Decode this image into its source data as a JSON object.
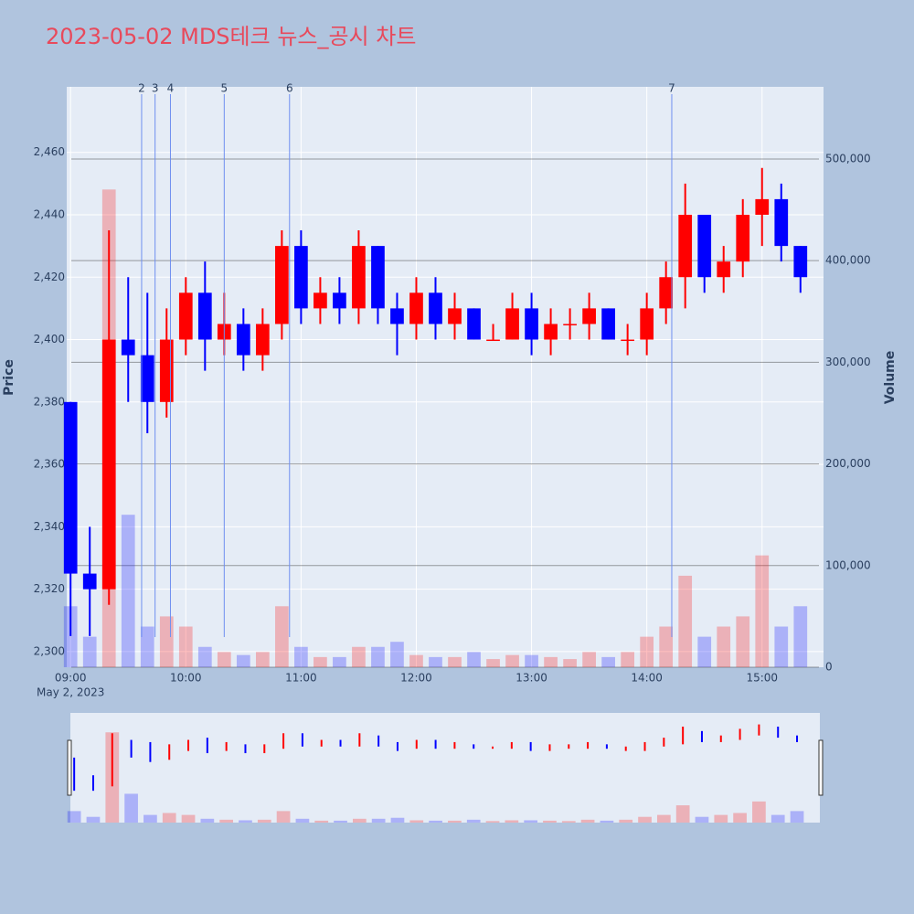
{
  "chart_data": {
    "type": "candlestick",
    "title": "2023-05-02 MDS테크 뉴스_공시 차트",
    "date_label": "May 2, 2023",
    "y_title": "Price",
    "y2_title": "Volume",
    "up_color": "#ff0000",
    "down_color": "#0000ff",
    "x": [
      "2023-05-02 09:00",
      "2023-05-02 09:10",
      "2023-05-02 09:20",
      "2023-05-02 09:30",
      "2023-05-02 09:40",
      "2023-05-02 09:50",
      "2023-05-02 10:00",
      "2023-05-02 10:10",
      "2023-05-02 10:20",
      "2023-05-02 10:30",
      "2023-05-02 10:40",
      "2023-05-02 10:50",
      "2023-05-02 11:00",
      "2023-05-02 11:10",
      "2023-05-02 11:20",
      "2023-05-02 11:30",
      "2023-05-02 11:40",
      "2023-05-02 11:50",
      "2023-05-02 12:00",
      "2023-05-02 12:10",
      "2023-05-02 12:20",
      "2023-05-02 12:30",
      "2023-05-02 12:40",
      "2023-05-02 12:50",
      "2023-05-02 13:00",
      "2023-05-02 13:10",
      "2023-05-02 13:20",
      "2023-05-02 13:30",
      "2023-05-02 13:40",
      "2023-05-02 13:50",
      "2023-05-02 14:00",
      "2023-05-02 14:10",
      "2023-05-02 14:20",
      "2023-05-02 14:30",
      "2023-05-02 14:40",
      "2023-05-02 14:50",
      "2023-05-02 15:00",
      "2023-05-02 15:10",
      "2023-05-02 15:20"
    ],
    "open": [
      2380,
      2325,
      2320,
      2400,
      2395,
      2380,
      2400,
      2415,
      2400,
      2405,
      2395,
      2405,
      2430,
      2410,
      2415,
      2410,
      2430,
      2410,
      2405,
      2415,
      2405,
      2410,
      2400,
      2400,
      2410,
      2400,
      2405,
      2405,
      2410,
      2400,
      2400,
      2410,
      2420,
      2440,
      2420,
      2425,
      2440,
      2445,
      2430
    ],
    "high": [
      2380,
      2340,
      2435,
      2420,
      2415,
      2410,
      2420,
      2425,
      2415,
      2410,
      2410,
      2435,
      2435,
      2420,
      2420,
      2435,
      2430,
      2415,
      2420,
      2420,
      2415,
      2410,
      2405,
      2415,
      2415,
      2410,
      2410,
      2415,
      2410,
      2405,
      2415,
      2425,
      2450,
      2440,
      2430,
      2445,
      2455,
      2450,
      2430
    ],
    "low": [
      2305,
      2305,
      2315,
      2380,
      2370,
      2375,
      2395,
      2390,
      2395,
      2390,
      2390,
      2400,
      2405,
      2405,
      2405,
      2405,
      2405,
      2395,
      2400,
      2400,
      2400,
      2400,
      2400,
      2400,
      2395,
      2395,
      2400,
      2400,
      2400,
      2395,
      2395,
      2405,
      2410,
      2415,
      2415,
      2420,
      2430,
      2425,
      2415
    ],
    "close": [
      2325,
      2320,
      2400,
      2395,
      2380,
      2400,
      2415,
      2400,
      2405,
      2395,
      2405,
      2430,
      2410,
      2415,
      2410,
      2430,
      2410,
      2405,
      2415,
      2405,
      2410,
      2400,
      2400,
      2410,
      2400,
      2405,
      2405,
      2410,
      2400,
      2400,
      2410,
      2420,
      2440,
      2420,
      2425,
      2440,
      2445,
      2430,
      2420
    ],
    "volume": [
      60000,
      30000,
      470000,
      150000,
      40000,
      50000,
      40000,
      20000,
      15000,
      12000,
      15000,
      60000,
      20000,
      10000,
      10000,
      20000,
      20000,
      25000,
      12000,
      10000,
      10000,
      15000,
      8000,
      12000,
      12000,
      10000,
      8000,
      15000,
      10000,
      15000,
      30000,
      40000,
      90000,
      30000,
      40000,
      50000,
      110000,
      40000,
      60000
    ],
    "xlim": [
      "2023-05-02 08:58",
      "2023-05-02 15:32"
    ],
    "xticks": [
      {
        "value": "2023-05-02 09:00",
        "label": "09:00"
      },
      {
        "value": "2023-05-02 10:00",
        "label": "10:00"
      },
      {
        "value": "2023-05-02 11:00",
        "label": "11:00"
      },
      {
        "value": "2023-05-02 12:00",
        "label": "12:00"
      },
      {
        "value": "2023-05-02 13:00",
        "label": "13:00"
      },
      {
        "value": "2023-05-02 14:00",
        "label": "14:00"
      },
      {
        "value": "2023-05-02 15:00",
        "label": "15:00"
      }
    ],
    "ylim": [
      2295,
      2481
    ],
    "yticks": [
      {
        "value": 2300,
        "label": "2,300"
      },
      {
        "value": 2320,
        "label": "2,320"
      },
      {
        "value": 2340,
        "label": "2,340"
      },
      {
        "value": 2360,
        "label": "2,360"
      },
      {
        "value": 2380,
        "label": "2,380"
      },
      {
        "value": 2400,
        "label": "2,400"
      },
      {
        "value": 2420,
        "label": "2,420"
      },
      {
        "value": 2440,
        "label": "2,440"
      },
      {
        "value": 2460,
        "label": "2,460"
      }
    ],
    "y2lim": [
      0,
      571000
    ],
    "y2ticks": [
      0,
      {
        "value": 100000,
        "label": "100,000"
      },
      {
        "value": 200000,
        "label": "200,000"
      },
      {
        "value": 300000,
        "label": "300,000"
      },
      {
        "value": 400000,
        "label": "400,000"
      },
      {
        "value": 500000,
        "label": "500,000"
      }
    ],
    "news": [
      {
        "label": "2",
        "x": "2023-05-02 09:37"
      },
      {
        "label": "3",
        "x": "2023-05-02 09:44"
      },
      {
        "label": "4",
        "x": "2023-05-02 09:52"
      },
      {
        "label": "5",
        "x": "2023-05-02 10:20"
      },
      {
        "label": "6",
        "x": "2023-05-02 10:54"
      },
      {
        "label": "7",
        "x": "2023-05-02 14:13"
      }
    ]
  }
}
